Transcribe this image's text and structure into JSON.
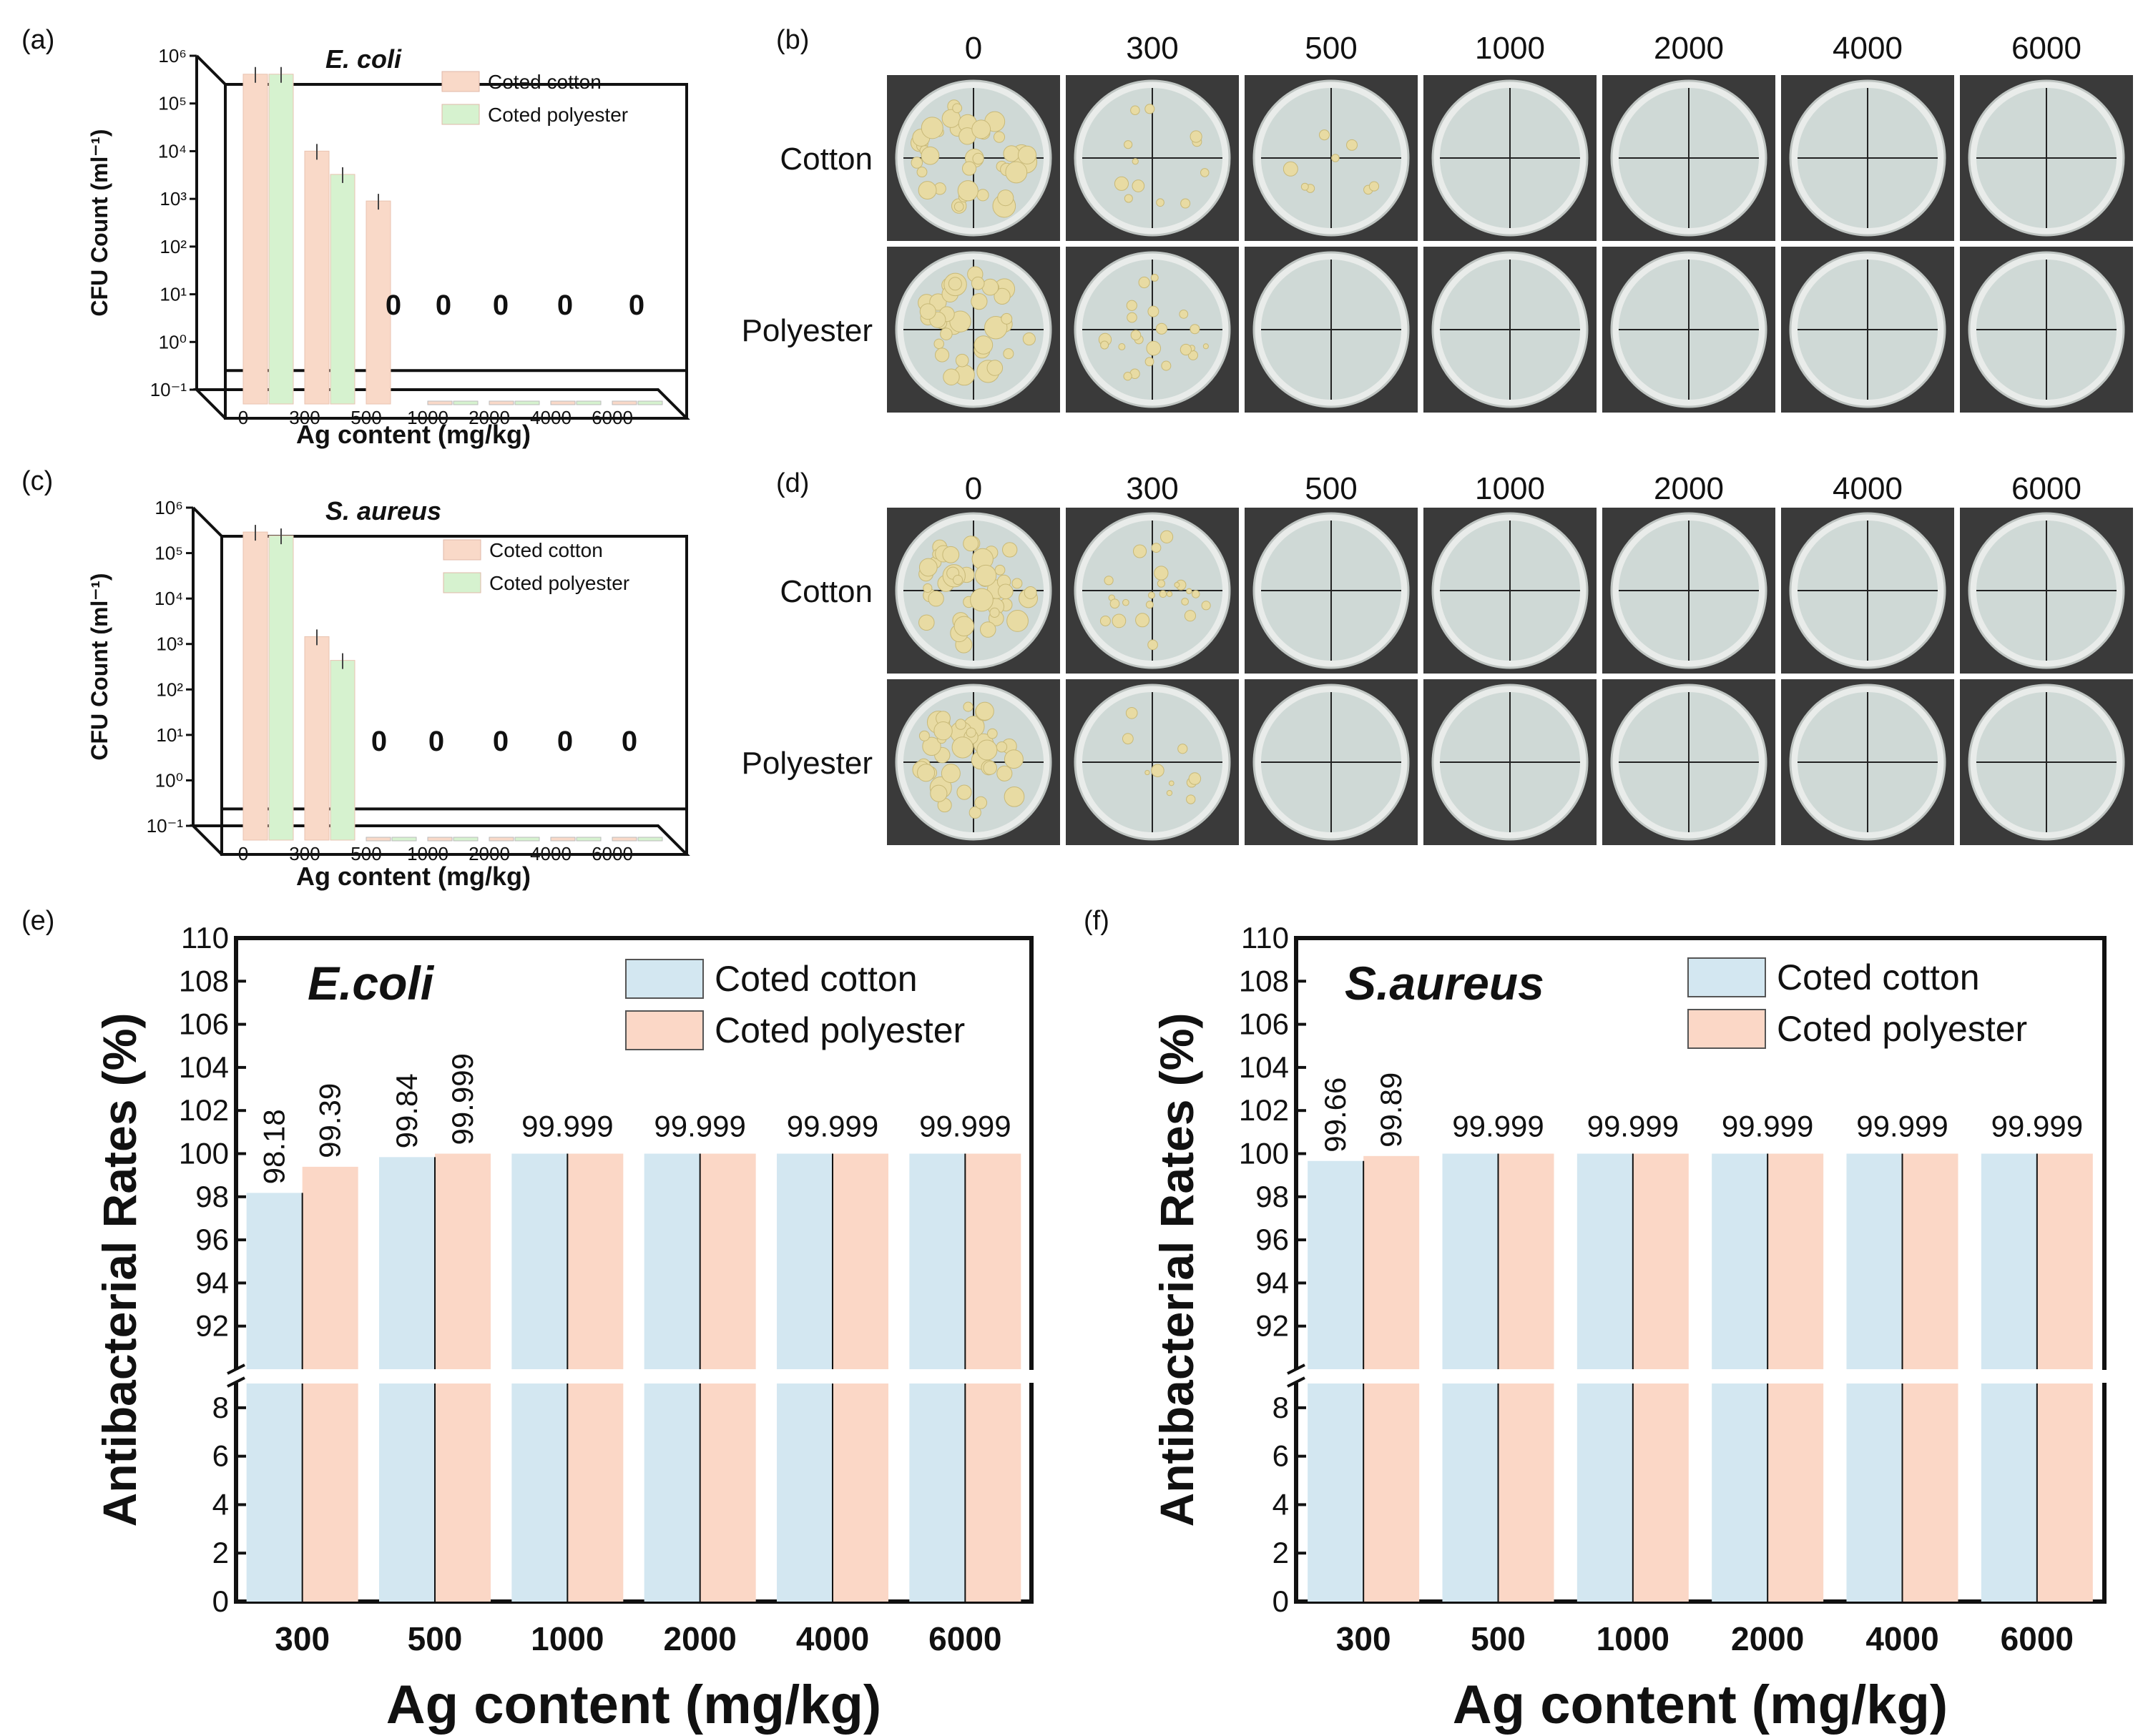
{
  "chart_data": [
    {
      "panel": "(a)",
      "type": "bar",
      "title": "E. coli",
      "xlabel": "Ag content (mg/kg)",
      "ylabel": "CFU Count (ml⁻¹)",
      "yscale": "log",
      "ylim": [
        0.1,
        1000000
      ],
      "ytick_labels": [
        "10⁻¹",
        "10⁰",
        "10¹",
        "10²",
        "10³",
        "10⁴",
        "10⁵",
        "10⁶"
      ],
      "categories": [
        "0",
        "300",
        "500",
        "1000",
        "2000",
        "4000",
        "6000"
      ],
      "series": [
        {
          "name": "Coted cotton",
          "color": "#f9d9c8",
          "values": [
            820000,
            20000,
            1800,
            0,
            0,
            0,
            0
          ]
        },
        {
          "name": "Coted  polyester",
          "color": "#d6f2cf",
          "values": [
            820000,
            6500,
            null,
            0,
            0,
            0,
            0
          ]
        }
      ],
      "zero_labels": [
        "0",
        "0",
        "0",
        "0",
        "0"
      ]
    },
    {
      "panel": "(c)",
      "type": "bar",
      "title": "S. aureus",
      "xlabel": "Ag content (mg/kg)",
      "ylabel": "CFU Count (ml⁻¹)",
      "yscale": "log",
      "ylim": [
        0.1,
        1000000
      ],
      "ytick_labels": [
        "10⁻¹",
        "10⁰",
        "10¹",
        "10²",
        "10³",
        "10⁴",
        "10⁵",
        "10⁶"
      ],
      "categories": [
        "0",
        "300",
        "500",
        "1000",
        "2000",
        "4000",
        "6000"
      ],
      "series": [
        {
          "name": "Coted cotton",
          "color": "#f9d9c8",
          "values": [
            600000,
            3000,
            0,
            0,
            0,
            0,
            0
          ]
        },
        {
          "name": "Coted polyester",
          "color": "#d6f2cf",
          "values": [
            500000,
            900,
            0,
            0,
            0,
            0,
            0
          ]
        }
      ],
      "zero_labels": [
        "0",
        "0",
        "0",
        "0",
        "0"
      ]
    },
    {
      "panel": "(e)",
      "type": "bar",
      "title": "E.coli",
      "xlabel": "Ag content (mg/kg)",
      "ylabel": "Antibacterial Rates (%)",
      "broken_axis": {
        "lower": [
          0,
          9
        ],
        "upper": [
          90,
          110
        ]
      },
      "ytick_labels_upper": [
        "92",
        "94",
        "96",
        "98",
        "100",
        "102",
        "104",
        "106",
        "108",
        "110"
      ],
      "ytick_labels_lower": [
        "0",
        "2",
        "4",
        "6",
        "8"
      ],
      "categories": [
        "300",
        "500",
        "1000",
        "2000",
        "4000",
        "6000"
      ],
      "series": [
        {
          "name": "Coted cotton",
          "color": "#d3e7f1",
          "values": [
            98.18,
            99.84,
            99.999,
            99.999,
            99.999,
            99.999
          ]
        },
        {
          "name": "Coted polyester",
          "color": "#fbd7c6",
          "values": [
            99.39,
            99.999,
            99.999,
            99.999,
            99.999,
            99.999
          ]
        }
      ],
      "value_labels": [
        "98.18",
        "99.39",
        "99.84",
        "99.999",
        "99.999",
        "99.999",
        "99.999",
        "99.999"
      ]
    },
    {
      "panel": "(f)",
      "type": "bar",
      "title": "S.aureus",
      "xlabel": "Ag content (mg/kg)",
      "ylabel": "Antibacterial Rates (%)",
      "broken_axis": {
        "lower": [
          0,
          9
        ],
        "upper": [
          90,
          110
        ]
      },
      "ytick_labels_upper": [
        "92",
        "94",
        "96",
        "98",
        "100",
        "102",
        "104",
        "106",
        "108",
        "110"
      ],
      "ytick_labels_lower": [
        "0",
        "2",
        "4",
        "6",
        "8"
      ],
      "categories": [
        "300",
        "500",
        "1000",
        "2000",
        "4000",
        "6000"
      ],
      "series": [
        {
          "name": "Coted cotton",
          "color": "#d3e7f1",
          "values": [
            99.66,
            99.999,
            99.999,
            99.999,
            99.999,
            99.999
          ]
        },
        {
          "name": "Coted  polyester",
          "color": "#fbd7c6",
          "values": [
            99.89,
            99.999,
            99.999,
            99.999,
            99.999,
            99.999
          ]
        }
      ],
      "value_labels": [
        "99.66",
        "99.89",
        "99.999",
        "99.999",
        "99.999",
        "99.999",
        "99.999"
      ]
    }
  ],
  "panel_labels": {
    "a": "(a)",
    "b": "(b)",
    "c": "(c)",
    "d": "(d)",
    "e": "(e)",
    "f": "(f)"
  },
  "photo_panels": [
    {
      "panel": "(b)",
      "columns": [
        "0",
        "300",
        "500",
        "1000",
        "2000",
        "4000",
        "6000"
      ],
      "rows": [
        "Cotton",
        "Polyester"
      ],
      "colonies": [
        [
          40,
          12,
          8,
          0,
          0,
          0,
          0
        ],
        [
          36,
          22,
          0,
          0,
          0,
          0,
          0
        ]
      ]
    },
    {
      "panel": "(d)",
      "columns": [
        "0",
        "300",
        "500",
        "1000",
        "2000",
        "4000",
        "6000"
      ],
      "rows": [
        "Cotton",
        "Polyester"
      ],
      "colonies": [
        [
          42,
          24,
          0,
          0,
          0,
          0,
          0
        ],
        [
          38,
          10,
          0,
          0,
          0,
          0,
          0
        ]
      ]
    }
  ],
  "colors": {
    "dish_bg": "#3a3a3a",
    "agar": "#cfd9d6",
    "colony": "#e8dba3",
    "axis": "#111111"
  }
}
